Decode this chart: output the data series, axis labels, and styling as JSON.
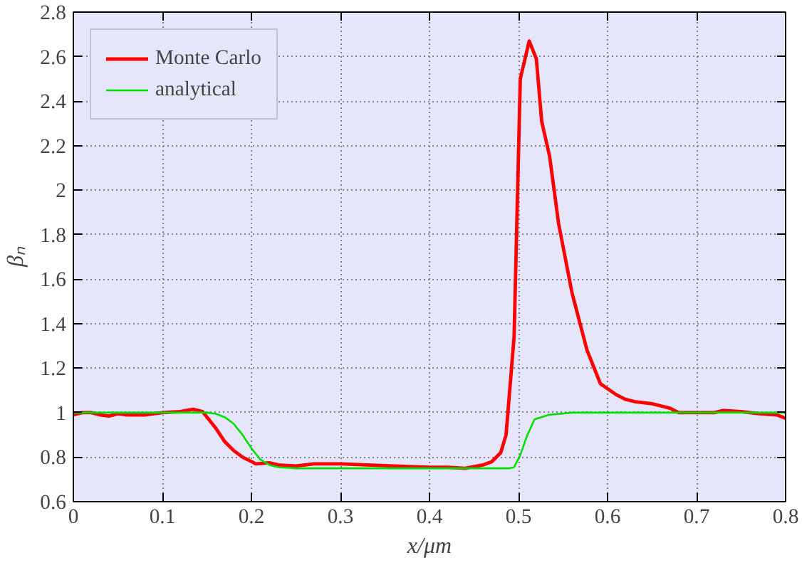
{
  "chart_data": {
    "type": "line",
    "xlabel": "x/μm",
    "ylabel": "βₙ",
    "xlim": [
      0,
      0.8
    ],
    "ylim": [
      0.6,
      2.8
    ],
    "xticks": [
      0,
      0.1,
      0.2,
      0.3,
      0.4,
      0.5,
      0.6,
      0.7,
      0.8
    ],
    "yticks": [
      0.6,
      0.8,
      1,
      1.2,
      1.4,
      1.6,
      1.8,
      2,
      2.2,
      2.4,
      2.6,
      2.8
    ],
    "grid": true,
    "legend": "top left",
    "line_style": "solid",
    "marker": "none",
    "series": [
      {
        "name": "Monte Carlo",
        "color": "#ff0000",
        "x": [
          0,
          0.01,
          0.02,
          0.03,
          0.04,
          0.05,
          0.06,
          0.08,
          0.1,
          0.12,
          0.135,
          0.145,
          0.16,
          0.17,
          0.18,
          0.19,
          0.2,
          0.205,
          0.22,
          0.23,
          0.25,
          0.27,
          0.3,
          0.33,
          0.36,
          0.4,
          0.42,
          0.44,
          0.46,
          0.47,
          0.48,
          0.486,
          0.495,
          0.502,
          0.512,
          0.52,
          0.526,
          0.535,
          0.545,
          0.56,
          0.577,
          0.592,
          0.61,
          0.62,
          0.63,
          0.65,
          0.66,
          0.67,
          0.68,
          0.7,
          0.72,
          0.73,
          0.75,
          0.77,
          0.79,
          0.8
        ],
        "values": [
          0.99,
          1.0,
          1.0,
          0.99,
          0.985,
          0.995,
          0.99,
          0.99,
          1.0,
          1.005,
          1.015,
          1.005,
          0.93,
          0.87,
          0.83,
          0.8,
          0.78,
          0.77,
          0.775,
          0.765,
          0.76,
          0.77,
          0.77,
          0.765,
          0.76,
          0.755,
          0.755,
          0.75,
          0.765,
          0.78,
          0.82,
          0.9,
          1.34,
          2.5,
          2.67,
          2.59,
          2.31,
          2.15,
          1.85,
          1.54,
          1.28,
          1.13,
          1.08,
          1.06,
          1.05,
          1.04,
          1.03,
          1.02,
          1.0,
          1.0,
          1.0,
          1.01,
          1.005,
          0.995,
          0.99,
          0.975
        ]
      },
      {
        "name": "analytical",
        "color": "#00e000",
        "x": [
          0,
          0.15,
          0.16,
          0.17,
          0.18,
          0.19,
          0.2,
          0.21,
          0.22,
          0.23,
          0.25,
          0.49,
          0.495,
          0.502,
          0.51,
          0.518,
          0.534,
          0.56,
          0.8
        ],
        "values": [
          1.0,
          1.0,
          0.995,
          0.98,
          0.95,
          0.9,
          0.84,
          0.79,
          0.765,
          0.755,
          0.75,
          0.75,
          0.755,
          0.81,
          0.9,
          0.97,
          0.99,
          1.0,
          1.0
        ]
      }
    ]
  }
}
